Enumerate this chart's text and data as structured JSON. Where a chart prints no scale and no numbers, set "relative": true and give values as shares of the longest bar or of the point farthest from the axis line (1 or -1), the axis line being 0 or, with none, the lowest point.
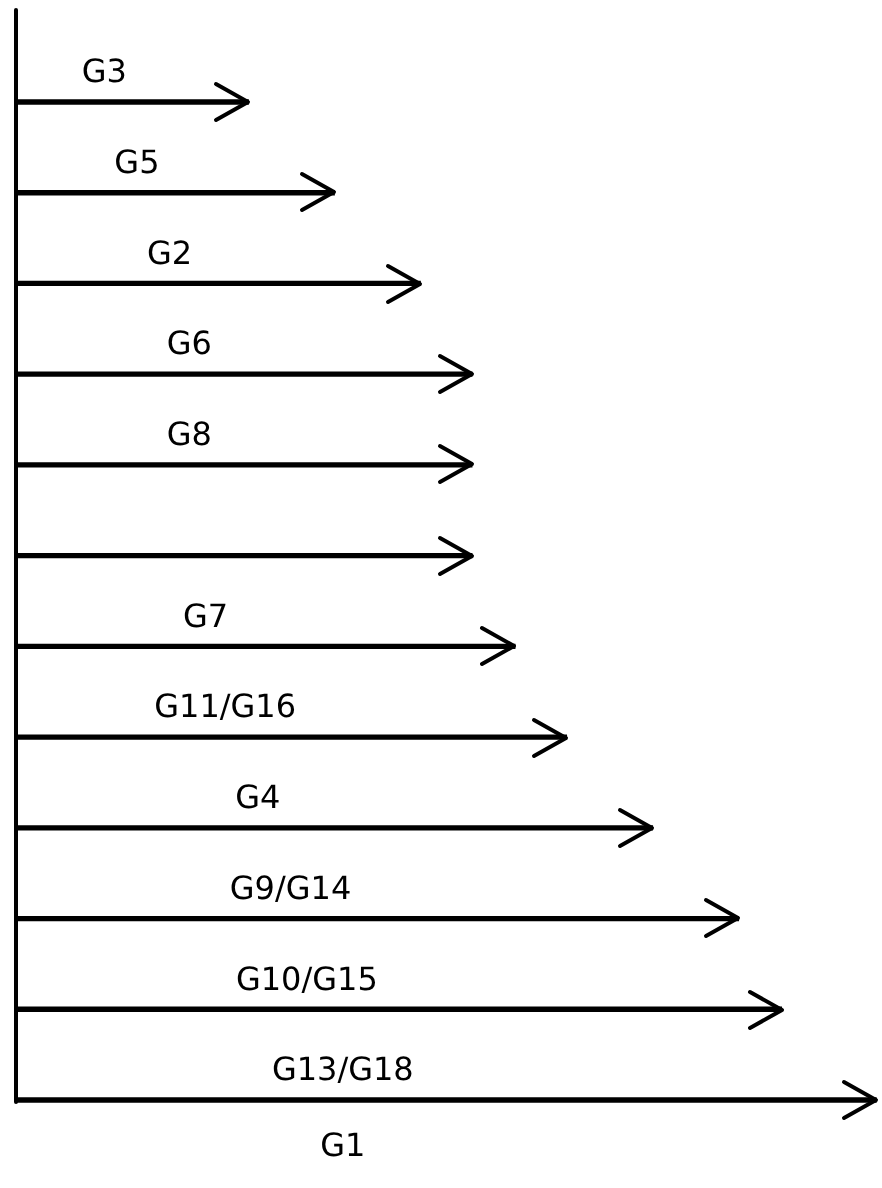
{
  "chart_data": {
    "type": "bar",
    "orientation": "horizontal",
    "relative": true,
    "xlabel": "G1",
    "color": "#000000",
    "categories": [
      "G3",
      "G5",
      "G2",
      "G6",
      "G8",
      null,
      "G7",
      "G11/G16",
      "G4",
      "G9/G14",
      "G10/G15",
      "G13/G18"
    ],
    "values": [
      0.27,
      0.37,
      0.47,
      0.53,
      0.53,
      0.53,
      0.58,
      0.64,
      0.74,
      0.84,
      0.89,
      1
    ]
  }
}
